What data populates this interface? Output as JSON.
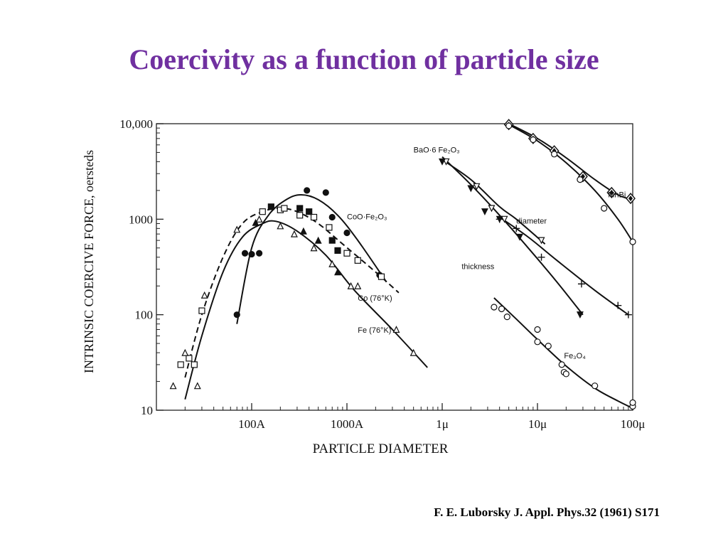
{
  "slide": {
    "title": "Coercivity as a function of particle size",
    "citation": "F. E. Luborsky J. Appl. Phys.32 (1961) S171"
  },
  "chart_data": {
    "type": "scatter",
    "title": "",
    "xlabel": "PARTICLE DIAMETER",
    "ylabel": "INTRINSIC COERCIVE FORCE, oersteds",
    "x_scale": "log",
    "y_scale": "log",
    "x_unit": "angstrom",
    "xlim": [
      10,
      1000000
    ],
    "ylim": [
      10,
      10000
    ],
    "x_ticks": [
      {
        "value": 100,
        "label": "100A"
      },
      {
        "value": 1000,
        "label": "1000A"
      },
      {
        "value": 10000,
        "label": "1μ"
      },
      {
        "value": 100000,
        "label": "10μ"
      },
      {
        "value": 1000000,
        "label": "100μ"
      }
    ],
    "y_ticks": [
      {
        "value": 10,
        "label": "10"
      },
      {
        "value": 100,
        "label": "100"
      },
      {
        "value": 1000,
        "label": "1000"
      },
      {
        "value": 10000,
        "label": "10,000"
      }
    ],
    "grid": false,
    "legend": "none",
    "annotations": [
      {
        "text": "CoO·Fe₂O₃",
        "x": 1000,
        "y": 1000
      },
      {
        "text": "Co (76°K)",
        "x": 1300,
        "y": 140
      },
      {
        "text": "Fe (76°K)",
        "x": 1300,
        "y": 65
      },
      {
        "text": "BaO·6 Fe₂O₃",
        "x": 5000,
        "y": 5000
      },
      {
        "text": "diameter",
        "x": 60000,
        "y": 900
      },
      {
        "text": "thickness",
        "x": 16000,
        "y": 300
      },
      {
        "text": "MnBi",
        "x": 550000,
        "y": 1700
      },
      {
        "text": "Fe₃O₄",
        "x": 190000,
        "y": 35
      }
    ],
    "series": [
      {
        "name": "CoO·Fe₂O₃",
        "marker": "filled-circle",
        "points": [
          [
            70,
            100
          ],
          [
            85,
            440
          ],
          [
            100,
            430
          ],
          [
            120,
            440
          ],
          [
            380,
            2000
          ],
          [
            600,
            1900
          ],
          [
            700,
            1050
          ],
          [
            1000,
            720
          ],
          [
            2200,
            260
          ]
        ],
        "curve": [
          [
            70,
            80
          ],
          [
            100,
            500
          ],
          [
            150,
            1100
          ],
          [
            230,
            1600
          ],
          [
            330,
            1800
          ],
          [
            500,
            1600
          ],
          [
            800,
            1100
          ],
          [
            1300,
            600
          ],
          [
            2600,
            220
          ]
        ]
      },
      {
        "name": "Co (76°K)",
        "marker": "square",
        "points": [
          [
            18,
            30
          ],
          [
            22,
            35
          ],
          [
            25,
            30
          ],
          [
            30,
            110
          ],
          [
            130,
            1200
          ],
          [
            200,
            1250
          ],
          [
            220,
            1300
          ],
          [
            320,
            1100
          ],
          [
            450,
            1050
          ],
          [
            650,
            820
          ],
          [
            1000,
            440
          ],
          [
            1300,
            370
          ],
          [
            2300,
            250
          ]
        ],
        "filled_points": [
          [
            160,
            1350
          ],
          [
            320,
            1300
          ],
          [
            400,
            1200
          ],
          [
            700,
            600
          ],
          [
            800,
            470
          ]
        ],
        "curve": [
          [
            20,
            22
          ],
          [
            30,
            100
          ],
          [
            50,
            400
          ],
          [
            80,
            900
          ],
          [
            130,
            1200
          ],
          [
            200,
            1300
          ],
          [
            300,
            1200
          ],
          [
            500,
            900
          ],
          [
            900,
            550
          ],
          [
            2000,
            280
          ],
          [
            3500,
            170
          ]
        ]
      },
      {
        "name": "Fe (76°K)",
        "marker": "triangle",
        "points": [
          [
            15,
            18
          ],
          [
            20,
            40
          ],
          [
            27,
            18
          ],
          [
            32,
            160
          ],
          [
            70,
            780
          ],
          [
            120,
            1000
          ],
          [
            200,
            850
          ],
          [
            280,
            700
          ],
          [
            450,
            500
          ],
          [
            700,
            340
          ],
          [
            1100,
            200
          ],
          [
            1300,
            200
          ],
          [
            3300,
            70
          ],
          [
            5000,
            40
          ]
        ],
        "filled_points": [
          [
            110,
            920
          ],
          [
            350,
            750
          ],
          [
            500,
            600
          ],
          [
            800,
            280
          ]
        ],
        "curve": [
          [
            20,
            13
          ],
          [
            30,
            60
          ],
          [
            50,
            280
          ],
          [
            80,
            650
          ],
          [
            130,
            900
          ],
          [
            180,
            950
          ],
          [
            300,
            750
          ],
          [
            600,
            420
          ],
          [
            1200,
            180
          ],
          [
            3000,
            70
          ],
          [
            7000,
            28
          ]
        ]
      },
      {
        "name": "BaO·6 Fe₂O₃ diameter",
        "marker": "triangle-down",
        "points": [
          [
            11000,
            4000
          ],
          [
            23000,
            2200
          ],
          [
            33000,
            1300
          ],
          [
            45000,
            1000
          ],
          [
            110000,
            600
          ]
        ],
        "curve": [
          [
            10000,
            4200
          ],
          [
            20000,
            2600
          ],
          [
            40000,
            1350
          ],
          [
            60000,
            1000
          ],
          [
            120000,
            550
          ]
        ]
      },
      {
        "name": "BaO·6 Fe₂O₃ thickness",
        "marker": "filled-triangle-down",
        "points": [
          [
            10000,
            4000
          ],
          [
            20000,
            2100
          ],
          [
            28000,
            1200
          ],
          [
            40000,
            1000
          ],
          [
            65000,
            650
          ],
          [
            280000,
            100
          ]
        ],
        "curve": [
          [
            10000,
            4500
          ],
          [
            20000,
            2300
          ],
          [
            40000,
            1100
          ],
          [
            80000,
            500
          ],
          [
            160000,
            220
          ],
          [
            300000,
            100
          ]
        ]
      },
      {
        "name": "BaO·6 Fe₂O₃ (+)",
        "marker": "plus",
        "points": [
          [
            40000,
            1000
          ],
          [
            60000,
            800
          ],
          [
            110000,
            400
          ],
          [
            290000,
            210
          ],
          [
            700000,
            125
          ],
          [
            900000,
            100
          ]
        ],
        "curve": [
          [
            40000,
            1050
          ],
          [
            80000,
            650
          ],
          [
            160000,
            370
          ],
          [
            400000,
            180
          ],
          [
            900000,
            100
          ]
        ]
      },
      {
        "name": "MnBi",
        "marker": "diamond",
        "points": [
          [
            50000,
            9800
          ],
          [
            90000,
            7000
          ],
          [
            150000,
            5200
          ],
          [
            300000,
            2800
          ],
          [
            600000,
            1900
          ],
          [
            950000,
            1650
          ]
        ],
        "curve": [
          [
            50000,
            10000
          ],
          [
            100000,
            7000
          ],
          [
            200000,
            4400
          ],
          [
            400000,
            2600
          ],
          [
            700000,
            1800
          ],
          [
            1000000,
            1600
          ]
        ]
      },
      {
        "name": "MnBi (open circle)",
        "marker": "circle",
        "points": [
          [
            50000,
            9500
          ],
          [
            90000,
            6800
          ],
          [
            150000,
            4800
          ],
          [
            280000,
            2600
          ],
          [
            500000,
            1300
          ],
          [
            1000000,
            580
          ]
        ],
        "curve": [
          [
            50000,
            9800
          ],
          [
            100000,
            6600
          ],
          [
            200000,
            3900
          ],
          [
            400000,
            2000
          ],
          [
            700000,
            1000
          ],
          [
            1000000,
            580
          ]
        ]
      },
      {
        "name": "Fe₃O₄",
        "marker": "circle",
        "points": [
          [
            35000,
            120
          ],
          [
            42000,
            115
          ],
          [
            48000,
            95
          ],
          [
            100000,
            70
          ],
          [
            100000,
            52
          ],
          [
            130000,
            47
          ],
          [
            180000,
            30
          ],
          [
            190000,
            25
          ],
          [
            200000,
            24
          ],
          [
            400000,
            18
          ],
          [
            1000000,
            11
          ],
          [
            1000000,
            12
          ]
        ],
        "curve": [
          [
            35000,
            150
          ],
          [
            60000,
            90
          ],
          [
            100000,
            55
          ],
          [
            200000,
            29
          ],
          [
            400000,
            17
          ],
          [
            700000,
            12.5
          ],
          [
            1000000,
            10.5
          ]
        ]
      }
    ]
  }
}
